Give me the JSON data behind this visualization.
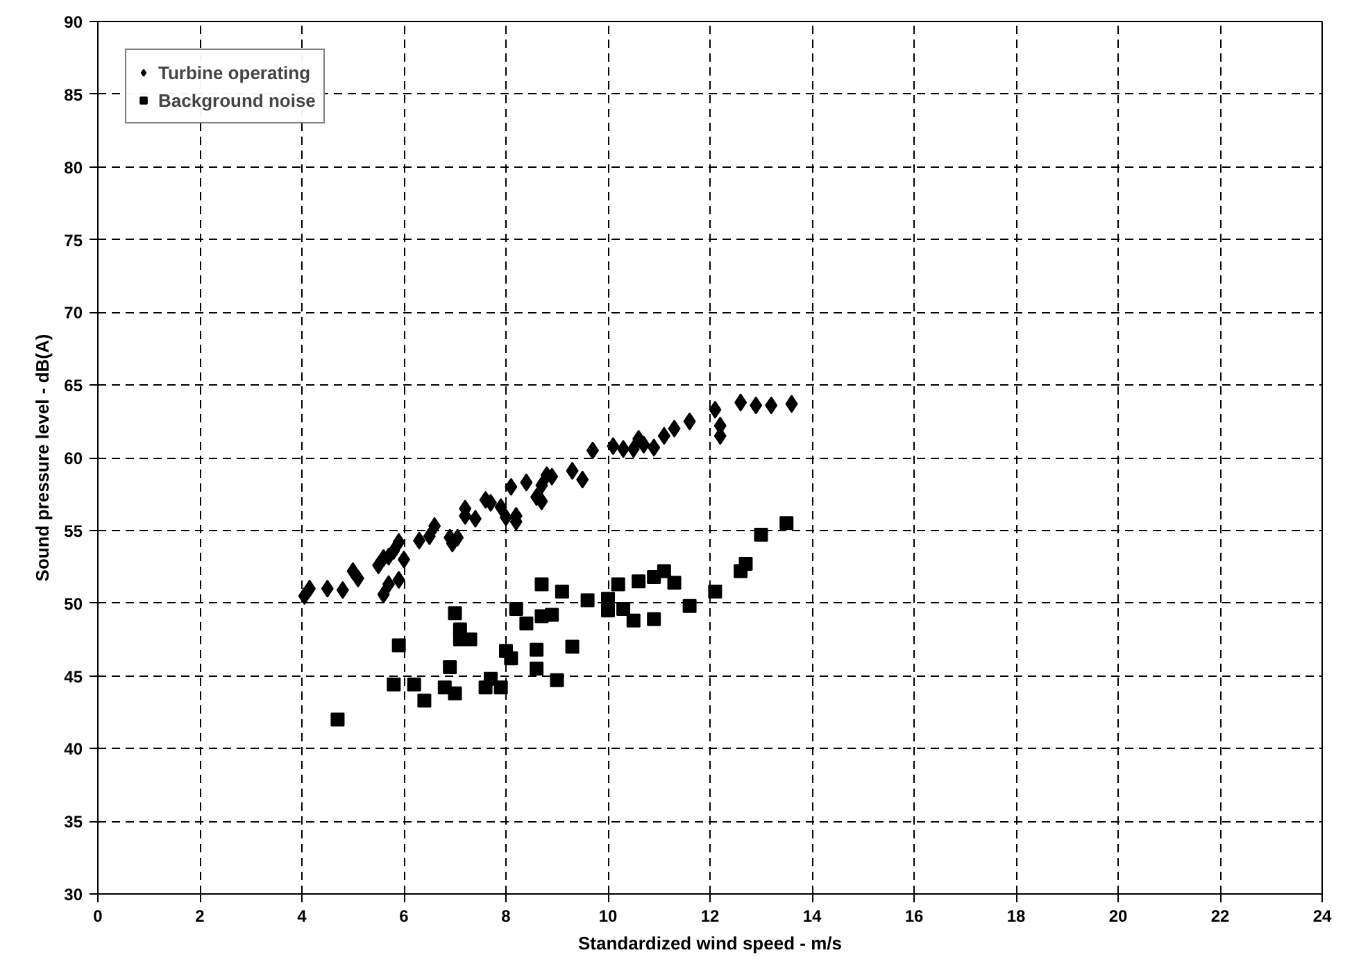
{
  "chart_data": {
    "type": "scatter",
    "xlabel": "Standardized wind speed - m/s",
    "ylabel": "Sound pressure level - dB(A)",
    "xlim": [
      0,
      24
    ],
    "ylim": [
      30,
      90
    ],
    "xticks": [
      0,
      2,
      4,
      6,
      8,
      10,
      12,
      14,
      16,
      18,
      20,
      22,
      24
    ],
    "yticks": [
      30,
      35,
      40,
      45,
      50,
      55,
      60,
      65,
      70,
      75,
      80,
      85,
      90
    ],
    "grid": true,
    "legend": "top left",
    "series": [
      {
        "name": "Turbine operating",
        "color": "#000000",
        "marker": "diamond",
        "x": [
          4.05,
          4.15,
          4.5,
          4.8,
          5.0,
          5.1,
          5.5,
          5.6,
          5.7,
          5.6,
          5.7,
          5.9,
          5.8,
          5.9,
          6.0,
          6.3,
          6.5,
          6.6,
          6.9,
          6.95,
          7.05,
          7.2,
          7.2,
          7.4,
          7.6,
          7.7,
          7.9,
          8.1,
          8.0,
          8.2,
          8.2,
          8.4,
          8.6,
          8.7,
          8.7,
          8.8,
          8.9,
          9.3,
          9.5,
          9.7,
          10.1,
          10.3,
          10.5,
          10.6,
          10.7,
          10.9,
          11.1,
          11.3,
          11.6,
          12.1,
          12.2,
          12.2,
          12.6,
          12.9,
          13.2,
          13.6
        ],
        "values": [
          50.5,
          51.0,
          51.0,
          50.9,
          52.2,
          51.7,
          52.6,
          53.1,
          53.2,
          50.6,
          51.3,
          51.6,
          53.6,
          54.2,
          53.0,
          54.3,
          54.6,
          55.3,
          54.5,
          54.1,
          54.5,
          56.0,
          56.5,
          55.8,
          57.1,
          56.9,
          56.6,
          58.0,
          55.9,
          55.6,
          56.0,
          58.3,
          57.3,
          57.0,
          58.1,
          58.8,
          58.7,
          59.1,
          58.5,
          60.5,
          60.8,
          60.6,
          60.6,
          61.3,
          60.9,
          60.7,
          61.5,
          62.0,
          62.5,
          63.3,
          62.2,
          61.5,
          63.8,
          63.6,
          63.6,
          63.7
        ]
      },
      {
        "name": "Background noise",
        "color": "#000000",
        "marker": "square",
        "x": [
          4.7,
          5.8,
          5.9,
          6.2,
          6.4,
          6.8,
          6.9,
          7.0,
          7.0,
          7.1,
          7.1,
          7.3,
          7.6,
          7.7,
          7.9,
          8.0,
          8.1,
          8.2,
          8.4,
          8.6,
          8.6,
          8.7,
          8.7,
          8.9,
          9.0,
          9.1,
          9.3,
          9.6,
          10.0,
          10.0,
          10.2,
          10.3,
          10.5,
          10.6,
          10.9,
          10.9,
          11.1,
          11.3,
          11.6,
          12.1,
          12.6,
          12.7,
          13.0,
          13.5
        ],
        "values": [
          42.0,
          44.4,
          47.1,
          44.4,
          43.3,
          44.2,
          45.6,
          43.8,
          49.3,
          48.2,
          47.5,
          47.5,
          44.2,
          44.8,
          44.2,
          46.7,
          46.2,
          49.6,
          48.6,
          45.5,
          46.8,
          51.3,
          49.1,
          49.2,
          44.7,
          50.8,
          47.0,
          50.2,
          50.3,
          49.5,
          51.3,
          49.6,
          48.8,
          51.5,
          48.9,
          51.8,
          52.2,
          51.4,
          49.8,
          50.8,
          52.2,
          52.7,
          54.7,
          55.5
        ]
      }
    ]
  }
}
